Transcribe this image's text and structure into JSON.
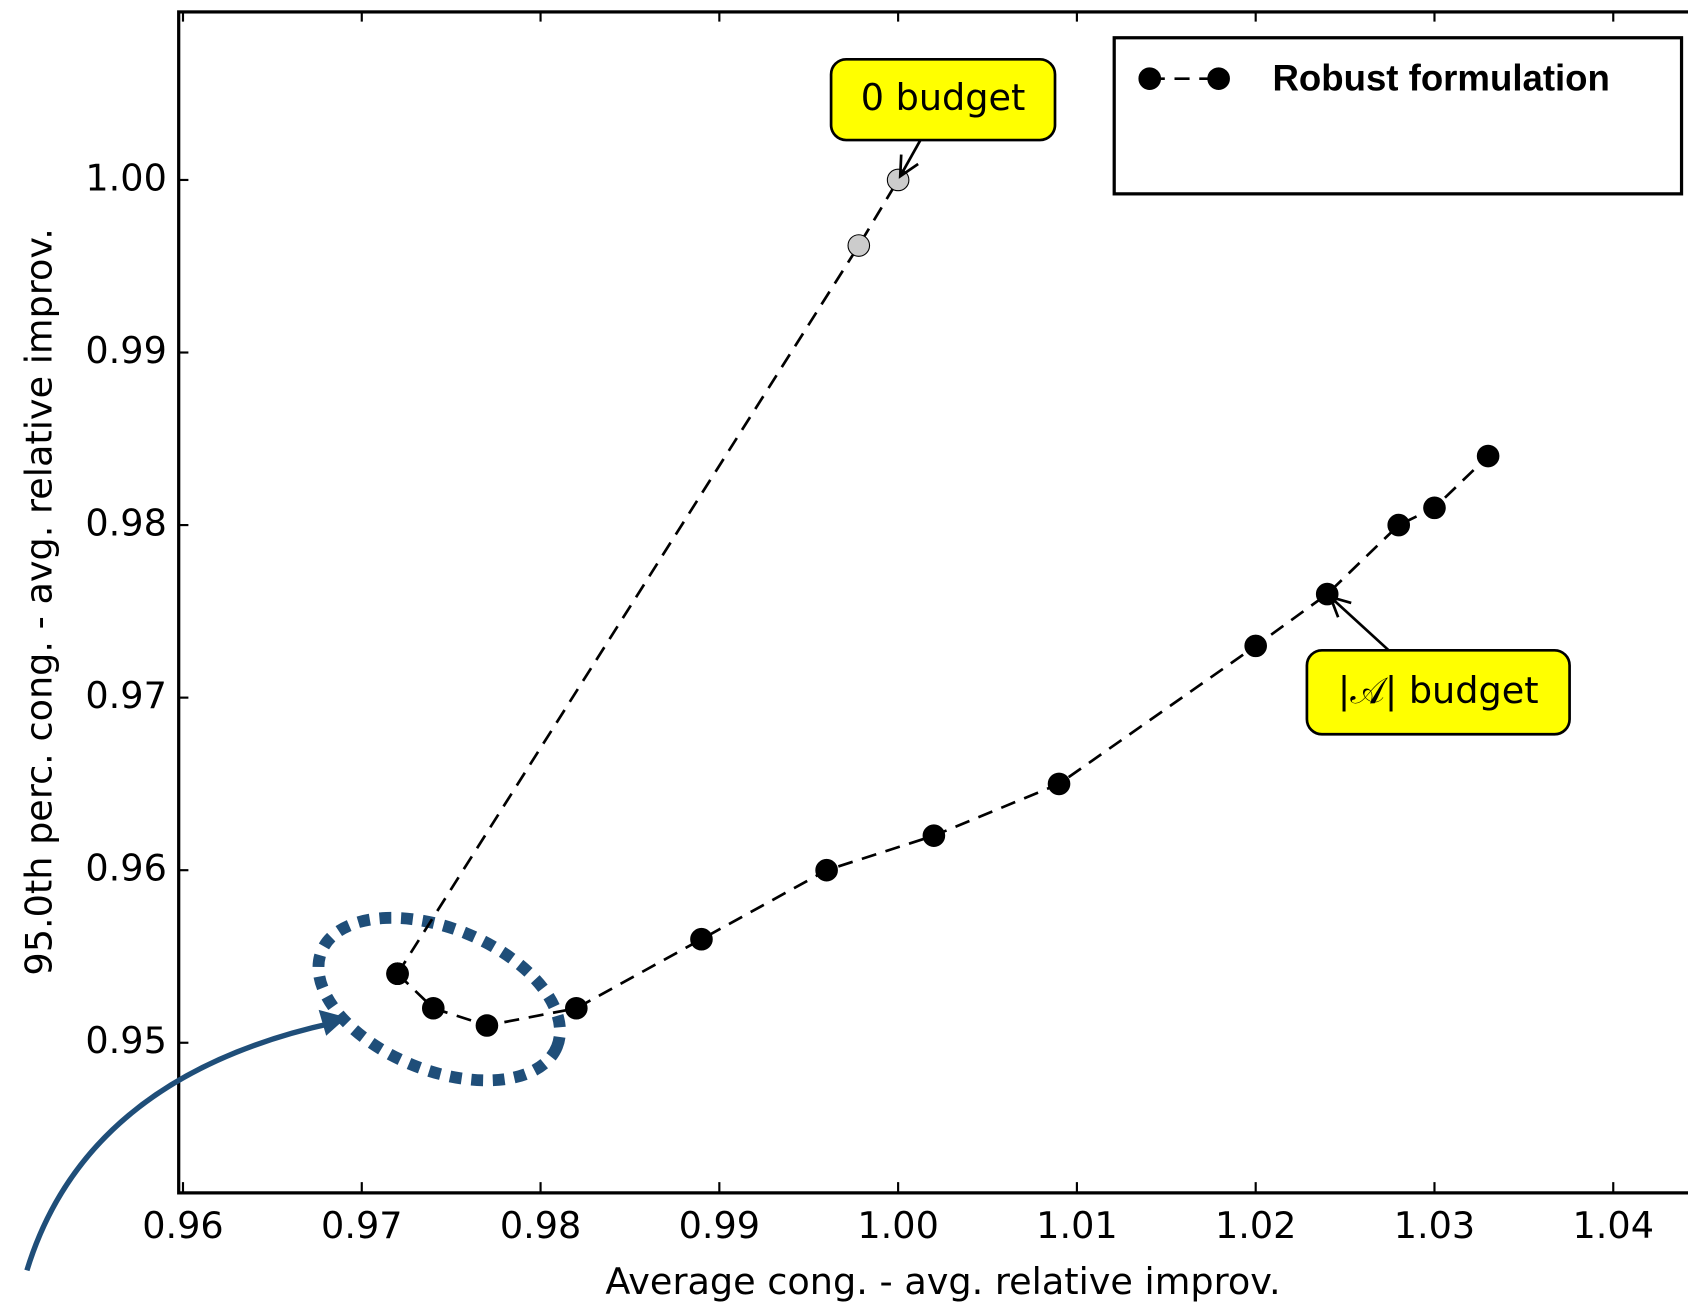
{
  "chart_data": {
    "type": "line",
    "xlabel": "Average cong. - avg. relative improv.",
    "ylabel": "95.0th perc. cong. - avg. relative improv.",
    "series": [
      {
        "name": "Robust formulation",
        "color": "#000000",
        "x": [
          0.972,
          0.974,
          0.977,
          0.982,
          0.989,
          0.996,
          1.002,
          1.009,
          1.02,
          1.024,
          1.028,
          1.03,
          1.033
        ],
        "values": [
          0.954,
          0.952,
          0.951,
          0.952,
          0.956,
          0.96,
          0.962,
          0.965,
          0.973,
          0.976,
          0.98,
          0.981,
          0.984
        ]
      },
      {
        "color": "#cccccc",
        "x": [
          0.972,
          0.9978,
          1.0
        ],
        "values": [
          0.954,
          0.9962,
          1.0
        ]
      }
    ],
    "annotations": [
      {
        "text": "0 budget",
        "x": 1.0,
        "y": 1.0
      },
      {
        "text": "|𝒜| budget",
        "x": 1.024,
        "y": 0.976
      }
    ],
    "xlim": [
      0.9597,
      1.044
    ],
    "ylim": [
      0.9413,
      1.0098
    ],
    "xticks": [
      0.96,
      0.97,
      0.98,
      0.99,
      {
        "value": 1,
        "label": "1.00"
      },
      1.01,
      1.02,
      1.03,
      1.04
    ],
    "yticks": [
      0.95,
      0.96,
      0.97,
      0.98,
      0.99,
      {
        "value": 1,
        "label": "1.00"
      }
    ],
    "legend": "upper right"
  }
}
